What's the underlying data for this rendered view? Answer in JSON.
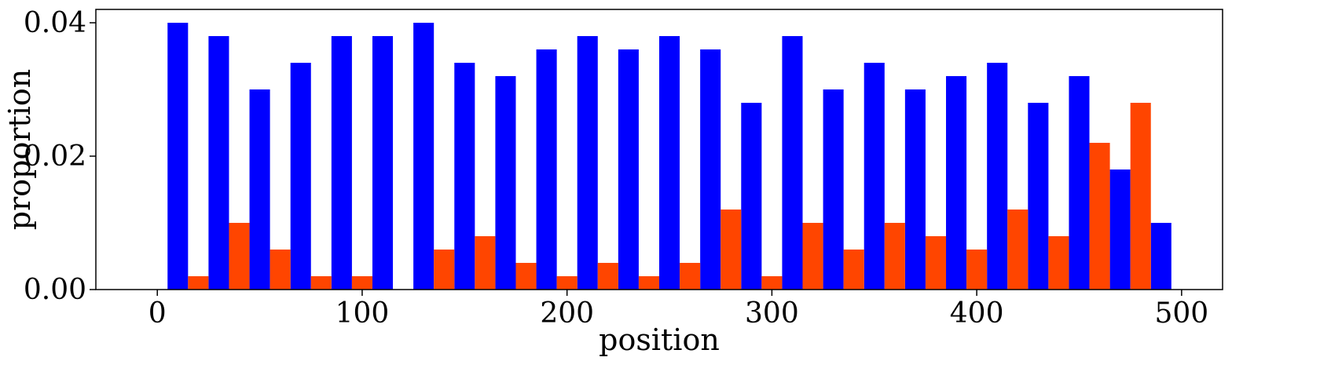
{
  "chart_data": {
    "type": "bar",
    "xlabel": "position",
    "ylabel": "proportion",
    "xlim": [
      -30,
      520
    ],
    "ylim": [
      0,
      0.042
    ],
    "xticks": [
      0,
      100,
      200,
      300,
      400,
      500
    ],
    "xtick_labels": [
      "0",
      "100",
      "200",
      "300",
      "400",
      "500"
    ],
    "yticks": [
      0.0,
      0.02,
      0.04
    ],
    "ytick_labels": [
      "0.00",
      "0.02",
      "0.04"
    ],
    "bin_width": 10,
    "grid": false,
    "series": [
      {
        "color": "#0000ff",
        "x": [
          10,
          30,
          50,
          70,
          90,
          110,
          130,
          150,
          170,
          190,
          210,
          230,
          250,
          270,
          290,
          310,
          330,
          350,
          370,
          390,
          410,
          430,
          450,
          470,
          490
        ],
        "values": [
          0.04,
          0.038,
          0.03,
          0.034,
          0.038,
          0.038,
          0.04,
          0.034,
          0.032,
          0.036,
          0.038,
          0.036,
          0.038,
          0.036,
          0.028,
          0.038,
          0.03,
          0.034,
          0.03,
          0.032,
          0.034,
          0.028,
          0.032,
          0.018,
          0.01
        ]
      },
      {
        "color": "#ff4500",
        "x": [
          20,
          40,
          60,
          80,
          100,
          120,
          140,
          160,
          180,
          200,
          220,
          240,
          260,
          280,
          300,
          320,
          340,
          360,
          380,
          400,
          420,
          440,
          460,
          480
        ],
        "values": [
          0.002,
          0.01,
          0.006,
          0.002,
          0.002,
          0.0,
          0.006,
          0.008,
          0.004,
          0.002,
          0.004,
          0.002,
          0.004,
          0.012,
          0.002,
          0.01,
          0.006,
          0.01,
          0.008,
          0.006,
          0.012,
          0.008,
          0.022,
          0.028
        ]
      }
    ]
  }
}
